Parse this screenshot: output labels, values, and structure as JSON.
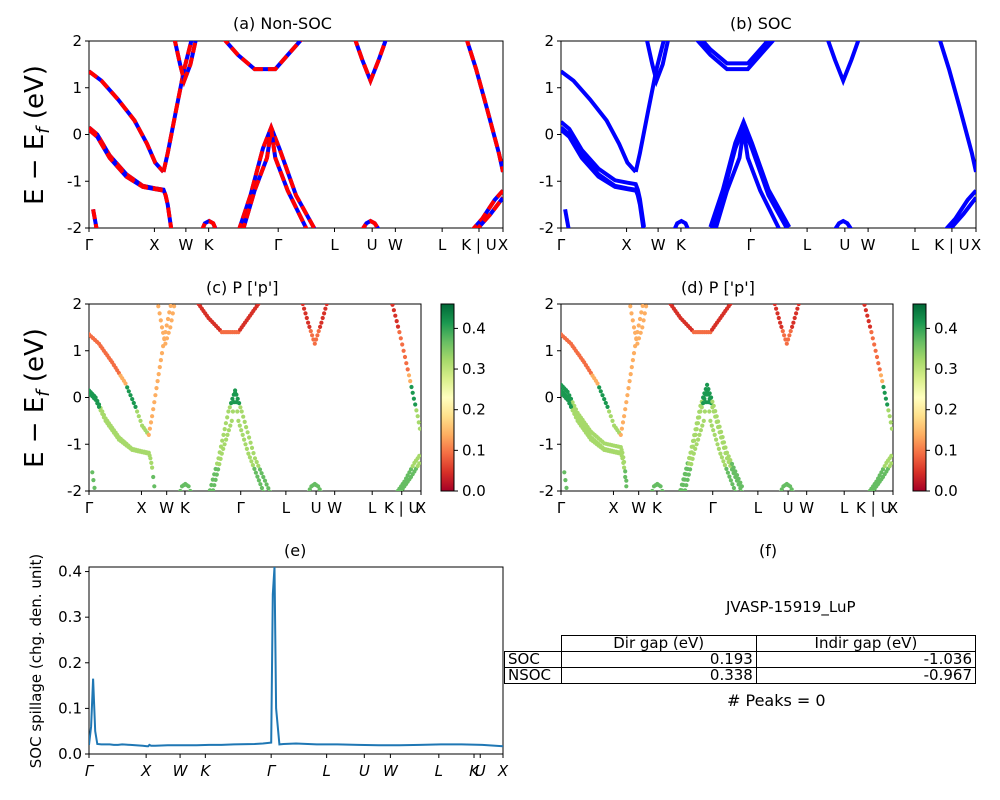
{
  "ylabel_bands": "$E - E_f$ (eV)",
  "panels": {
    "a": {
      "title": "(a) Non-SOC"
    },
    "b": {
      "title": "(b) SOC"
    },
    "c": {
      "title": "(c)  P ['p']"
    },
    "d": {
      "title": "(d) P ['p']"
    },
    "e": {
      "title": "(e)",
      "ylabel": "SOC spillage (chg. den. unit)"
    },
    "f": {
      "title": "(f)",
      "material": "JVASP-15919_LuP",
      "peaks": "# Peaks = 0"
    }
  },
  "band_ticks_ab": [
    "Γ",
    "X",
    "W",
    "K",
    "Γ",
    "L",
    "U",
    "W",
    "L",
    "K | U",
    "X"
  ],
  "band_ticks_cd": [
    "Γ",
    "X",
    "W",
    "K",
    "Γ",
    "L",
    "U",
    "W",
    "L",
    "K | U",
    "X"
  ],
  "spill_ticks": [
    "Γ",
    "X",
    "W",
    "K",
    "Γ",
    "L",
    "U",
    "W",
    "L",
    "K",
    "U",
    "X"
  ],
  "colorbar": {
    "ticks": [
      "0.0",
      "0.1",
      "0.2",
      "0.3",
      "0.4"
    ],
    "cmap": "RdYlGn",
    "range": [
      0,
      0.46
    ]
  },
  "colors": {
    "nonsoc": "#ff0000",
    "soc": "#0000ff",
    "spillage": "#1f77b4"
  },
  "table": {
    "header": [
      "Dir gap (eV)",
      "Indir gap (eV)"
    ],
    "rows": [
      {
        "label": "SOC",
        "dir": "0.193",
        "indir": "-1.036"
      },
      {
        "label": "NSOC",
        "dir": "0.338",
        "indir": "-0.967"
      }
    ]
  },
  "chart_data": [
    {
      "type": "line",
      "title": "(a) Non-SOC",
      "ylabel": "E - E_f (eV)",
      "ylim": [
        -2,
        2
      ],
      "yticks": [
        -2,
        -1,
        0,
        1,
        2
      ],
      "xticks": [
        "Γ",
        "X",
        "W",
        "K",
        "Γ",
        "L",
        "U",
        "W",
        "L",
        "K | U",
        "X"
      ],
      "series": [
        {
          "x": [
            0,
            0.08,
            0.16
          ],
          "y": [
            1.35,
            1.0,
            0.6
          ]
        },
        {
          "x": [
            0,
            0.08,
            0.16
          ],
          "y": [
            0.15,
            -0.45,
            -0.8
          ]
        },
        {
          "x": [
            0.35,
            0.43,
            0.5
          ],
          "y": [
            0.15,
            -0.8,
            -2.0
          ]
        }
      ]
    },
    {
      "type": "line",
      "title": "(b) SOC",
      "ylim": [
        -2,
        2
      ],
      "yticks": [
        -2,
        -1,
        0,
        1,
        2
      ],
      "xticks": [
        "Γ",
        "X",
        "W",
        "K",
        "Γ",
        "L",
        "U",
        "W",
        "L",
        "K | U",
        "X"
      ],
      "series": [
        {
          "x": [
            0,
            0.08,
            0.16
          ],
          "y": [
            1.35,
            1.0,
            0.6
          ]
        },
        {
          "x": [
            0,
            0.08,
            0.16
          ],
          "y": [
            0.25,
            -0.45,
            -0.8
          ]
        },
        {
          "x": [
            0.35,
            0.43,
            0.5
          ],
          "y": [
            0.25,
            -0.8,
            -2.0
          ]
        }
      ]
    },
    {
      "type": "scatter",
      "title": "(c)  P ['p']",
      "ylim": [
        -2,
        2
      ],
      "yticks": [
        -2,
        -1,
        0,
        1,
        2
      ],
      "colorbar_range": [
        0,
        0.46
      ],
      "xticks": [
        "Γ",
        "X",
        "W",
        "K",
        "Γ",
        "L",
        "U",
        "W",
        "L",
        "K | U",
        "X"
      ]
    },
    {
      "type": "scatter",
      "title": "(d) P ['p']",
      "ylim": [
        -2,
        2
      ],
      "yticks": [
        -2,
        -1,
        0,
        1,
        2
      ],
      "colorbar_range": [
        0,
        0.46
      ],
      "xticks": [
        "Γ",
        "X",
        "W",
        "K",
        "Γ",
        "L",
        "U",
        "W",
        "L",
        "K | U",
        "X"
      ]
    },
    {
      "type": "line",
      "title": "(e)",
      "ylabel": "SOC spillage (chg. den. unit)",
      "ylim": [
        0,
        0.41
      ],
      "yticks": [
        0.0,
        0.1,
        0.2,
        0.3,
        0.4
      ],
      "xticks": [
        "Γ",
        "X",
        "W",
        "K",
        "Γ",
        "L",
        "U",
        "W",
        "L",
        "K",
        "U",
        "X"
      ],
      "series": [
        {
          "name": "",
          "x": [
            0,
            0.5,
            1.0,
            1.5,
            2.0,
            3,
            4,
            5,
            6,
            7,
            8,
            10,
            13,
            14,
            14.3,
            14.6,
            15,
            16,
            19,
            22,
            23,
            26,
            29,
            32,
            35,
            40,
            42,
            44,
            44.4,
            44.8,
            45.2,
            46,
            47,
            50,
            55,
            60,
            65,
            70,
            75,
            80,
            85,
            90,
            95,
            100
          ],
          "y": [
            0.02,
            0.06,
            0.165,
            0.05,
            0.022,
            0.021,
            0.021,
            0.021,
            0.02,
            0.02,
            0.021,
            0.02,
            0.018,
            0.017,
            0.017,
            0.02,
            0.018,
            0.018,
            0.019,
            0.019,
            0.019,
            0.019,
            0.02,
            0.02,
            0.021,
            0.022,
            0.023,
            0.025,
            0.35,
            0.41,
            0.1,
            0.021,
            0.022,
            0.023,
            0.021,
            0.021,
            0.02,
            0.019,
            0.019,
            0.02,
            0.021,
            0.021,
            0.02,
            0.017
          ]
        }
      ]
    }
  ]
}
